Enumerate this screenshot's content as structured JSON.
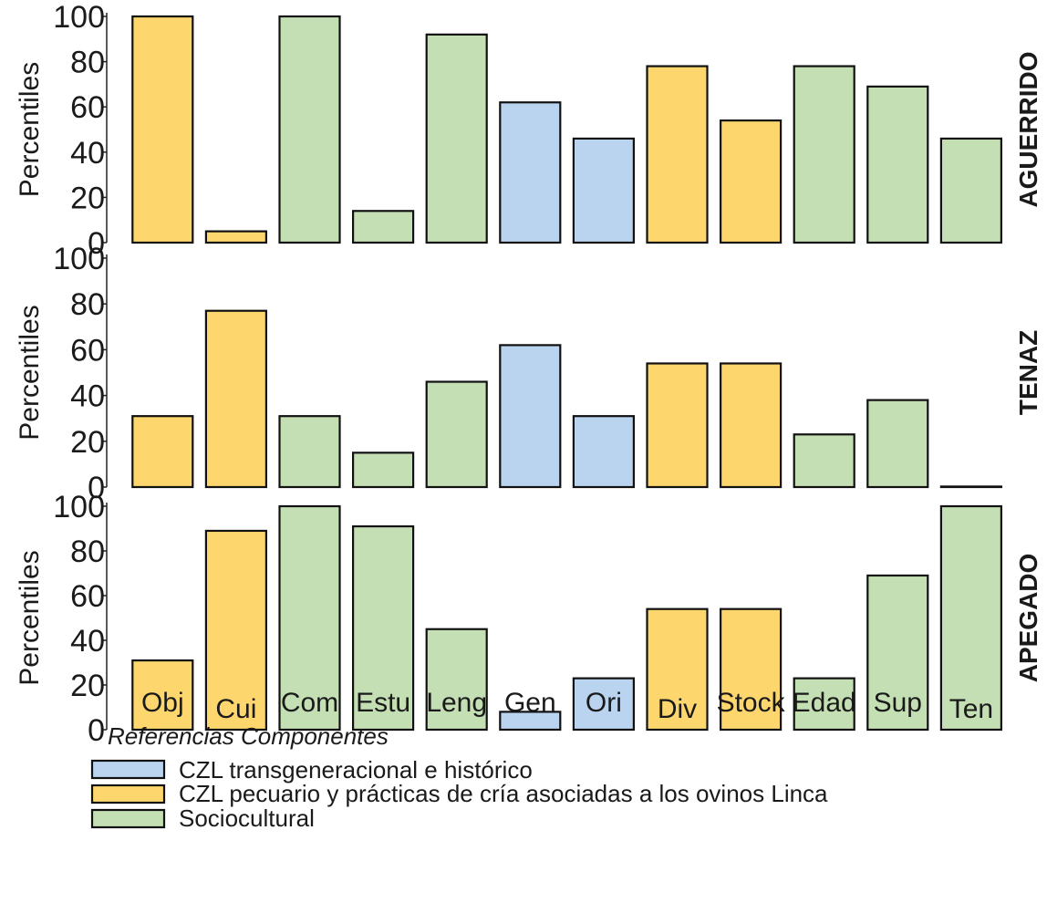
{
  "chart_data": {
    "type": "bar",
    "categories": [
      "Obj",
      "Cui",
      "Com",
      "Estu",
      "Leng",
      "Gen",
      "Ori",
      "Div",
      "Stock",
      "Edad",
      "Sup",
      "Ten"
    ],
    "category_groups": [
      "pecuario",
      "pecuario",
      "socio",
      "socio",
      "socio",
      "trans",
      "trans",
      "pecuario",
      "pecuario",
      "socio",
      "socio",
      "socio"
    ],
    "ylabel": "Percentiles",
    "ylim": [
      0,
      100
    ],
    "yticks": [
      0,
      20,
      40,
      60,
      80,
      100
    ],
    "panels": [
      {
        "name": "AGUERRIDO",
        "values": [
          100,
          5,
          100,
          14,
          92,
          62,
          46,
          78,
          54,
          78,
          69,
          46
        ]
      },
      {
        "name": "TENAZ",
        "values": [
          31,
          77,
          31,
          15,
          46,
          62,
          31,
          54,
          54,
          23,
          38,
          0
        ]
      },
      {
        "name": "APEGADO",
        "values": [
          31,
          89,
          100,
          91,
          45,
          8,
          23,
          54,
          54,
          23,
          69,
          100
        ]
      }
    ],
    "legend": {
      "title": "Referencias Componentes",
      "placement": "bottom-left",
      "items": [
        {
          "key": "trans",
          "label": "CZL transgeneracional  e histórico",
          "color": "#bad4ef"
        },
        {
          "key": "pecuario",
          "label": "CZL pecuario y prácticas  de cría asociadas  a los ovinos Linca",
          "color": "#fdd66e"
        },
        {
          "key": "socio",
          "label": "Sociocultural",
          "color": "#c4dfb4"
        }
      ]
    },
    "grid": false
  }
}
